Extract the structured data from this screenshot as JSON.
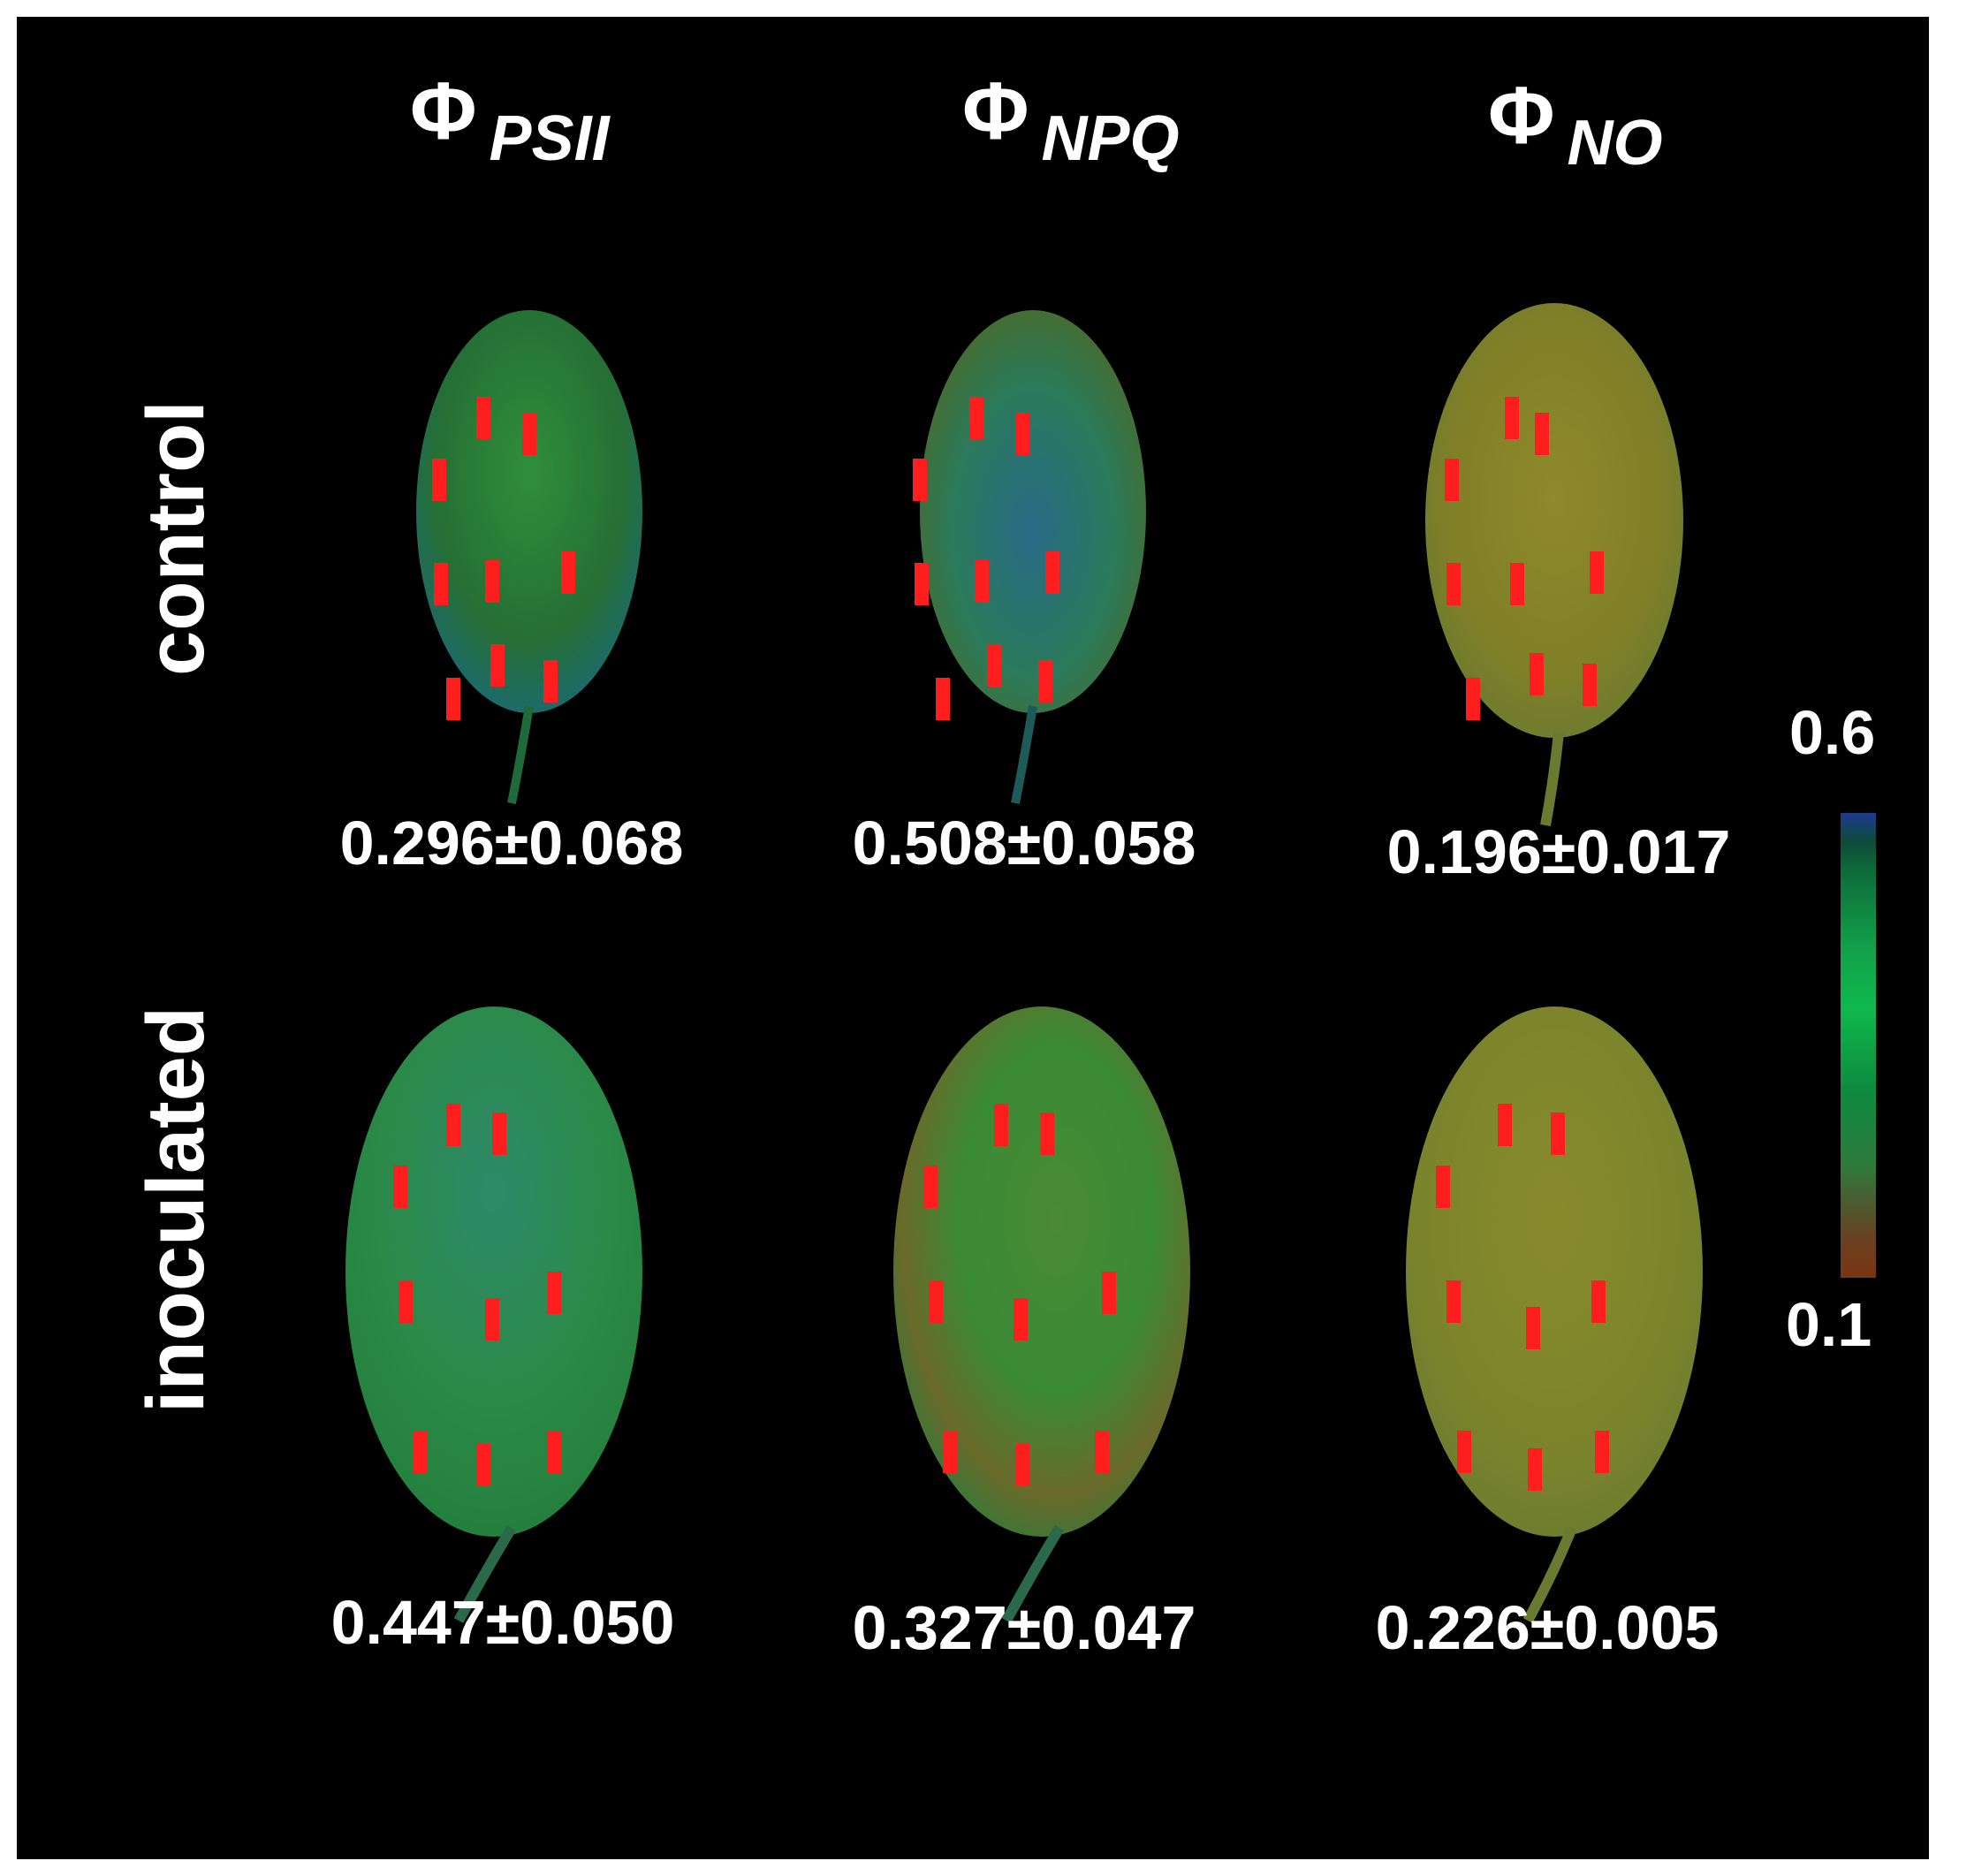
{
  "figure": {
    "columns": [
      {
        "symbol": "Φ",
        "subscript": "PSII"
      },
      {
        "symbol": "Φ",
        "subscript": "NPQ"
      },
      {
        "symbol": "Φ",
        "subscript": "NO"
      }
    ],
    "rows": [
      {
        "label": "control",
        "values": [
          "0.296±0.068",
          "0.508±0.058",
          "0.196±0.017"
        ]
      },
      {
        "label": "inoculated",
        "values": [
          "0.447±0.050",
          "0.327±0.047",
          "0.226±0.005"
        ]
      }
    ],
    "color_scale": {
      "max_label": "0.6",
      "min_label": "0.1",
      "max_value": 0.6,
      "min_value": 0.1
    },
    "leaf_colors": {
      "control_psii": "#2e8a3e",
      "control_npq": "#2f7a6a",
      "control_no": "#8a8a2a",
      "inoculated_psii": "#2f8a5a",
      "inoculated_npq": "#4f8a34",
      "inoculated_no": "#7f8a2c"
    },
    "roi_label_color": "#ff2020"
  }
}
